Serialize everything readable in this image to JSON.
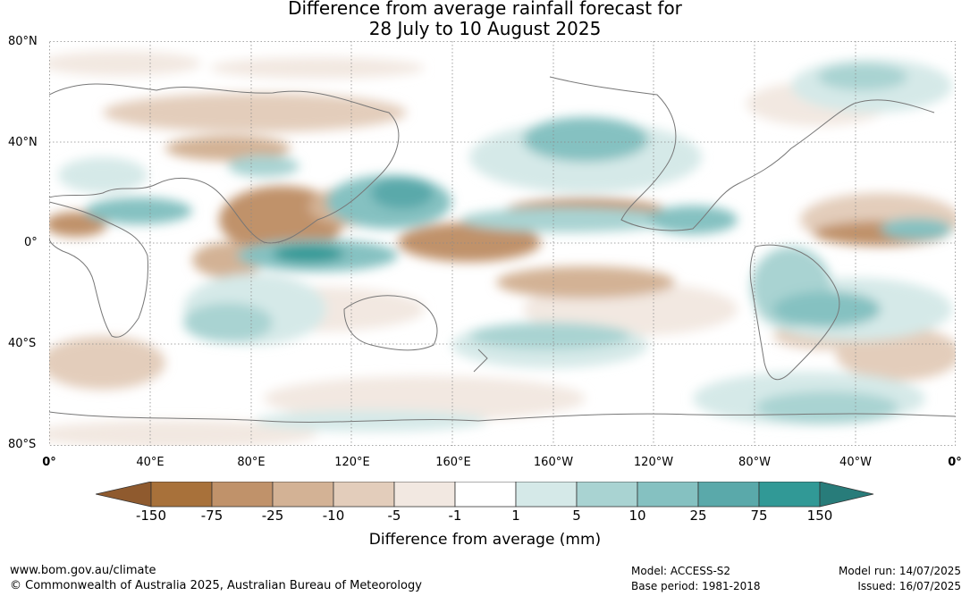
{
  "title": {
    "line1": "Difference from average rainfall forecast for",
    "line2": "28 July to 10 August 2025"
  },
  "map": {
    "lat_labels": [
      "80°N",
      "40°N",
      "0°",
      "40°S",
      "80°S"
    ],
    "lon_labels": [
      "0°",
      "40°E",
      "80°E",
      "120°E",
      "160°E",
      "160°W",
      "120°W",
      "80°W",
      "40°W",
      "0°"
    ]
  },
  "colorbar": {
    "title": "Difference from average (mm)",
    "labels": [
      "-150",
      "-75",
      "-25",
      "-10",
      "-5",
      "-1",
      "1",
      "5",
      "10",
      "25",
      "75",
      "150"
    ],
    "colors": [
      "#a8713a",
      "#c0926a",
      "#d3b295",
      "#e3cdbb",
      "#f2e8e1",
      "#ffffff",
      "#d5e9e8",
      "#a9d3d2",
      "#85c1c1",
      "#5aa9aa",
      "#319996"
    ],
    "low_extend_color": "#8f5a2e",
    "high_extend_color": "#287c7a"
  },
  "footer": {
    "url": "www.bom.gov.au/climate",
    "copyright": "© Commonwealth of Australia 2025, Australian Bureau of Meteorology",
    "model": "Model: ACCESS-S2",
    "base_period": "Base period: 1981-2018",
    "model_run": "Model run: 14/07/2025",
    "issued": "Issued: 16/07/2025"
  }
}
